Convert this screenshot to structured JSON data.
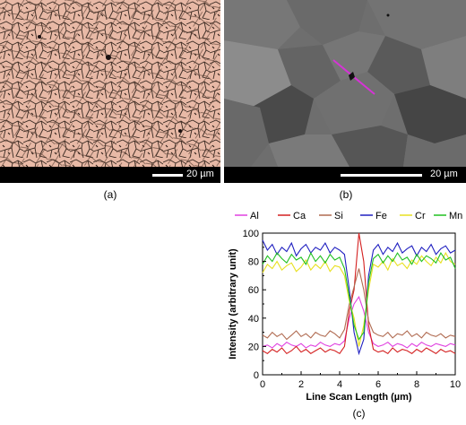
{
  "panel_a": {
    "caption": "(a)",
    "scale_label": "20 µm",
    "colors": {
      "background": "#e8b9a6",
      "grain_line": "#3a2a22"
    }
  },
  "panel_b": {
    "caption": "(b)",
    "scale_label": "20 µm",
    "colors": {
      "background": "#6e6e6e",
      "grain_light": "#8a8a8a",
      "grain_dark": "#3e3e3e",
      "scan_line": "#d633d6"
    }
  },
  "panel_c": {
    "caption": "(c)",
    "chart_data": {
      "type": "line",
      "title": "",
      "xlabel": "Line Scan Length (µm)",
      "ylabel": "Intensity (arbitrary unit)",
      "xlim": [
        0,
        10
      ],
      "ylim": [
        0,
        100
      ],
      "xticks": [
        0,
        2,
        4,
        6,
        8,
        10
      ],
      "yticks": [
        0,
        20,
        40,
        60,
        80,
        100
      ],
      "legend_position": "top",
      "grid": false,
      "x": [
        0,
        0.25,
        0.5,
        0.75,
        1,
        1.25,
        1.5,
        1.75,
        2,
        2.25,
        2.5,
        2.75,
        3,
        3.25,
        3.5,
        3.75,
        4,
        4.25,
        4.5,
        4.75,
        5,
        5.25,
        5.5,
        5.75,
        6,
        6.25,
        6.5,
        6.75,
        7,
        7.25,
        7.5,
        7.75,
        8,
        8.25,
        8.5,
        8.75,
        9,
        9.25,
        9.5,
        9.75,
        10
      ],
      "series": [
        {
          "name": "Al",
          "color": "#e040e0",
          "values": [
            20,
            21,
            19,
            22,
            20,
            23,
            21,
            20,
            22,
            19,
            21,
            20,
            23,
            21,
            20,
            22,
            21,
            24,
            40,
            50,
            55,
            45,
            30,
            22,
            20,
            21,
            23,
            20,
            22,
            21,
            19,
            22,
            20,
            23,
            21,
            20,
            22,
            21,
            20,
            22,
            21
          ]
        },
        {
          "name": "Ca",
          "color": "#d42020",
          "values": [
            17,
            15,
            18,
            16,
            19,
            15,
            17,
            20,
            16,
            18,
            15,
            17,
            19,
            16,
            18,
            17,
            15,
            20,
            45,
            60,
            100,
            80,
            35,
            18,
            16,
            17,
            15,
            19,
            16,
            18,
            17,
            15,
            18,
            16,
            19,
            17,
            15,
            18,
            16,
            17,
            15
          ]
        },
        {
          "name": "Si",
          "color": "#b06a50",
          "values": [
            28,
            26,
            30,
            27,
            29,
            25,
            28,
            31,
            27,
            29,
            26,
            30,
            28,
            27,
            31,
            29,
            26,
            32,
            50,
            62,
            75,
            60,
            38,
            30,
            28,
            27,
            30,
            26,
            29,
            28,
            31,
            27,
            29,
            26,
            30,
            28,
            27,
            29,
            26,
            28,
            27
          ]
        },
        {
          "name": "Fe",
          "color": "#2020c0",
          "values": [
            95,
            88,
            92,
            85,
            90,
            87,
            93,
            84,
            89,
            92,
            86,
            90,
            88,
            93,
            86,
            90,
            88,
            85,
            60,
            30,
            15,
            25,
            70,
            88,
            92,
            85,
            90,
            87,
            93,
            86,
            89,
            91,
            84,
            90,
            87,
            92,
            85,
            89,
            91,
            86,
            88
          ]
        },
        {
          "name": "Cr",
          "color": "#e8e020",
          "values": [
            72,
            78,
            75,
            80,
            74,
            77,
            79,
            73,
            76,
            81,
            74,
            78,
            75,
            80,
            73,
            77,
            76,
            70,
            52,
            40,
            20,
            35,
            60,
            78,
            76,
            80,
            74,
            82,
            77,
            79,
            75,
            81,
            78,
            84,
            80,
            77,
            83,
            79,
            86,
            80,
            78
          ]
        },
        {
          "name": "Mn",
          "color": "#20c020",
          "values": [
            78,
            84,
            80,
            86,
            82,
            79,
            85,
            81,
            83,
            78,
            86,
            80,
            84,
            79,
            85,
            81,
            83,
            75,
            55,
            35,
            25,
            30,
            65,
            82,
            85,
            79,
            84,
            80,
            86,
            81,
            83,
            78,
            85,
            80,
            84,
            82,
            79,
            86,
            81,
            83,
            75
          ]
        }
      ]
    }
  }
}
